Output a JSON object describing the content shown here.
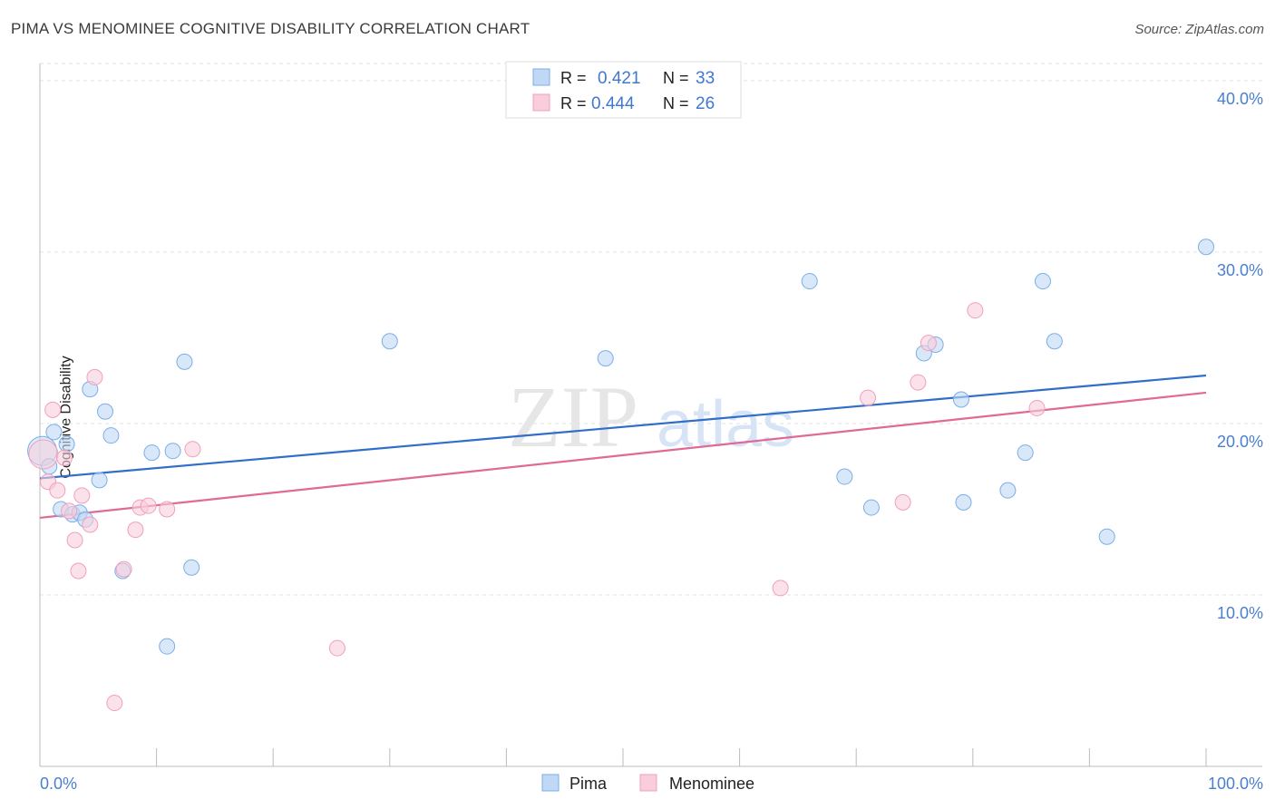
{
  "title": "PIMA VS MENOMINEE COGNITIVE DISABILITY CORRELATION CHART",
  "source": "Source: ZipAtlas.com",
  "watermark": {
    "zip": "ZIP",
    "atlas": "atlas"
  },
  "chart_data": {
    "type": "scatter",
    "ylabel": "Cognitive Disability",
    "xlim": [
      0,
      100
    ],
    "ylim": [
      0,
      41
    ],
    "x_tick_labels": [
      "0.0%",
      "100.0%"
    ],
    "y_ticks": [
      10,
      20,
      30,
      40
    ],
    "y_tick_labels": [
      "10.0%",
      "20.0%",
      "30.0%",
      "40.0%"
    ],
    "grid": "horizontal dashed",
    "legend_position": "top-center",
    "bottom_legend": [
      "Pima",
      "Menominee"
    ],
    "series": [
      {
        "name": "Pima",
        "color": "#7baee8",
        "fill": "#c0d8f5",
        "line_color": "#2f6fca",
        "stats": {
          "r_label": "R =",
          "r_value": "0.421",
          "n_label": "N =",
          "n_value": "33"
        },
        "trend": {
          "x": [
            0,
            100
          ],
          "y": [
            16.8,
            22.8
          ]
        },
        "points": [
          {
            "x": 0.2,
            "y": 18.4
          },
          {
            "x": 0.8,
            "y": 17.5
          },
          {
            "x": 1.2,
            "y": 19.5
          },
          {
            "x": 2.3,
            "y": 18.8
          },
          {
            "x": 1.8,
            "y": 15.0
          },
          {
            "x": 2.8,
            "y": 14.7
          },
          {
            "x": 3.4,
            "y": 14.8
          },
          {
            "x": 3.9,
            "y": 14.4
          },
          {
            "x": 4.3,
            "y": 22.0
          },
          {
            "x": 5.1,
            "y": 16.7
          },
          {
            "x": 5.6,
            "y": 20.7
          },
          {
            "x": 6.1,
            "y": 19.3
          },
          {
            "x": 7.1,
            "y": 11.4
          },
          {
            "x": 9.6,
            "y": 18.3
          },
          {
            "x": 10.9,
            "y": 7.0
          },
          {
            "x": 11.4,
            "y": 18.4
          },
          {
            "x": 12.4,
            "y": 23.6
          },
          {
            "x": 13.0,
            "y": 11.6
          },
          {
            "x": 30.0,
            "y": 24.8
          },
          {
            "x": 48.5,
            "y": 23.8
          },
          {
            "x": 66.0,
            "y": 28.3
          },
          {
            "x": 69.0,
            "y": 16.9
          },
          {
            "x": 71.3,
            "y": 15.1
          },
          {
            "x": 75.8,
            "y": 24.1
          },
          {
            "x": 76.8,
            "y": 24.6
          },
          {
            "x": 79.0,
            "y": 21.4
          },
          {
            "x": 79.2,
            "y": 15.4
          },
          {
            "x": 83.0,
            "y": 16.1
          },
          {
            "x": 84.5,
            "y": 18.3
          },
          {
            "x": 86.0,
            "y": 28.3
          },
          {
            "x": 87.0,
            "y": 24.8
          },
          {
            "x": 91.5,
            "y": 13.4
          },
          {
            "x": 100.0,
            "y": 30.3
          }
        ]
      },
      {
        "name": "Menominee",
        "color": "#f0a0bd",
        "fill": "#f9cdda",
        "line_color": "#e06a93",
        "stats": {
          "r_label": "R =",
          "r_value": "0.444",
          "n_label": "N =",
          "n_value": "26"
        },
        "trend": {
          "x": [
            0,
            100
          ],
          "y": [
            14.5,
            21.8
          ]
        },
        "points": [
          {
            "x": 0.3,
            "y": 18.2
          },
          {
            "x": 0.7,
            "y": 16.6
          },
          {
            "x": 1.1,
            "y": 20.8
          },
          {
            "x": 1.5,
            "y": 16.1
          },
          {
            "x": 2.1,
            "y": 18.0
          },
          {
            "x": 2.5,
            "y": 14.9
          },
          {
            "x": 3.0,
            "y": 13.2
          },
          {
            "x": 3.3,
            "y": 11.4
          },
          {
            "x": 3.6,
            "y": 15.8
          },
          {
            "x": 4.3,
            "y": 14.1
          },
          {
            "x": 4.7,
            "y": 22.7
          },
          {
            "x": 6.4,
            "y": 3.7
          },
          {
            "x": 7.2,
            "y": 11.5
          },
          {
            "x": 8.2,
            "y": 13.8
          },
          {
            "x": 8.6,
            "y": 15.1
          },
          {
            "x": 9.3,
            "y": 15.2
          },
          {
            "x": 10.9,
            "y": 15.0
          },
          {
            "x": 13.1,
            "y": 18.5
          },
          {
            "x": 25.5,
            "y": 6.9
          },
          {
            "x": 63.5,
            "y": 10.4
          },
          {
            "x": 71.0,
            "y": 21.5
          },
          {
            "x": 74.0,
            "y": 15.4
          },
          {
            "x": 75.3,
            "y": 22.4
          },
          {
            "x": 76.2,
            "y": 24.7
          },
          {
            "x": 80.2,
            "y": 26.6
          },
          {
            "x": 85.5,
            "y": 20.9
          }
        ]
      }
    ]
  }
}
